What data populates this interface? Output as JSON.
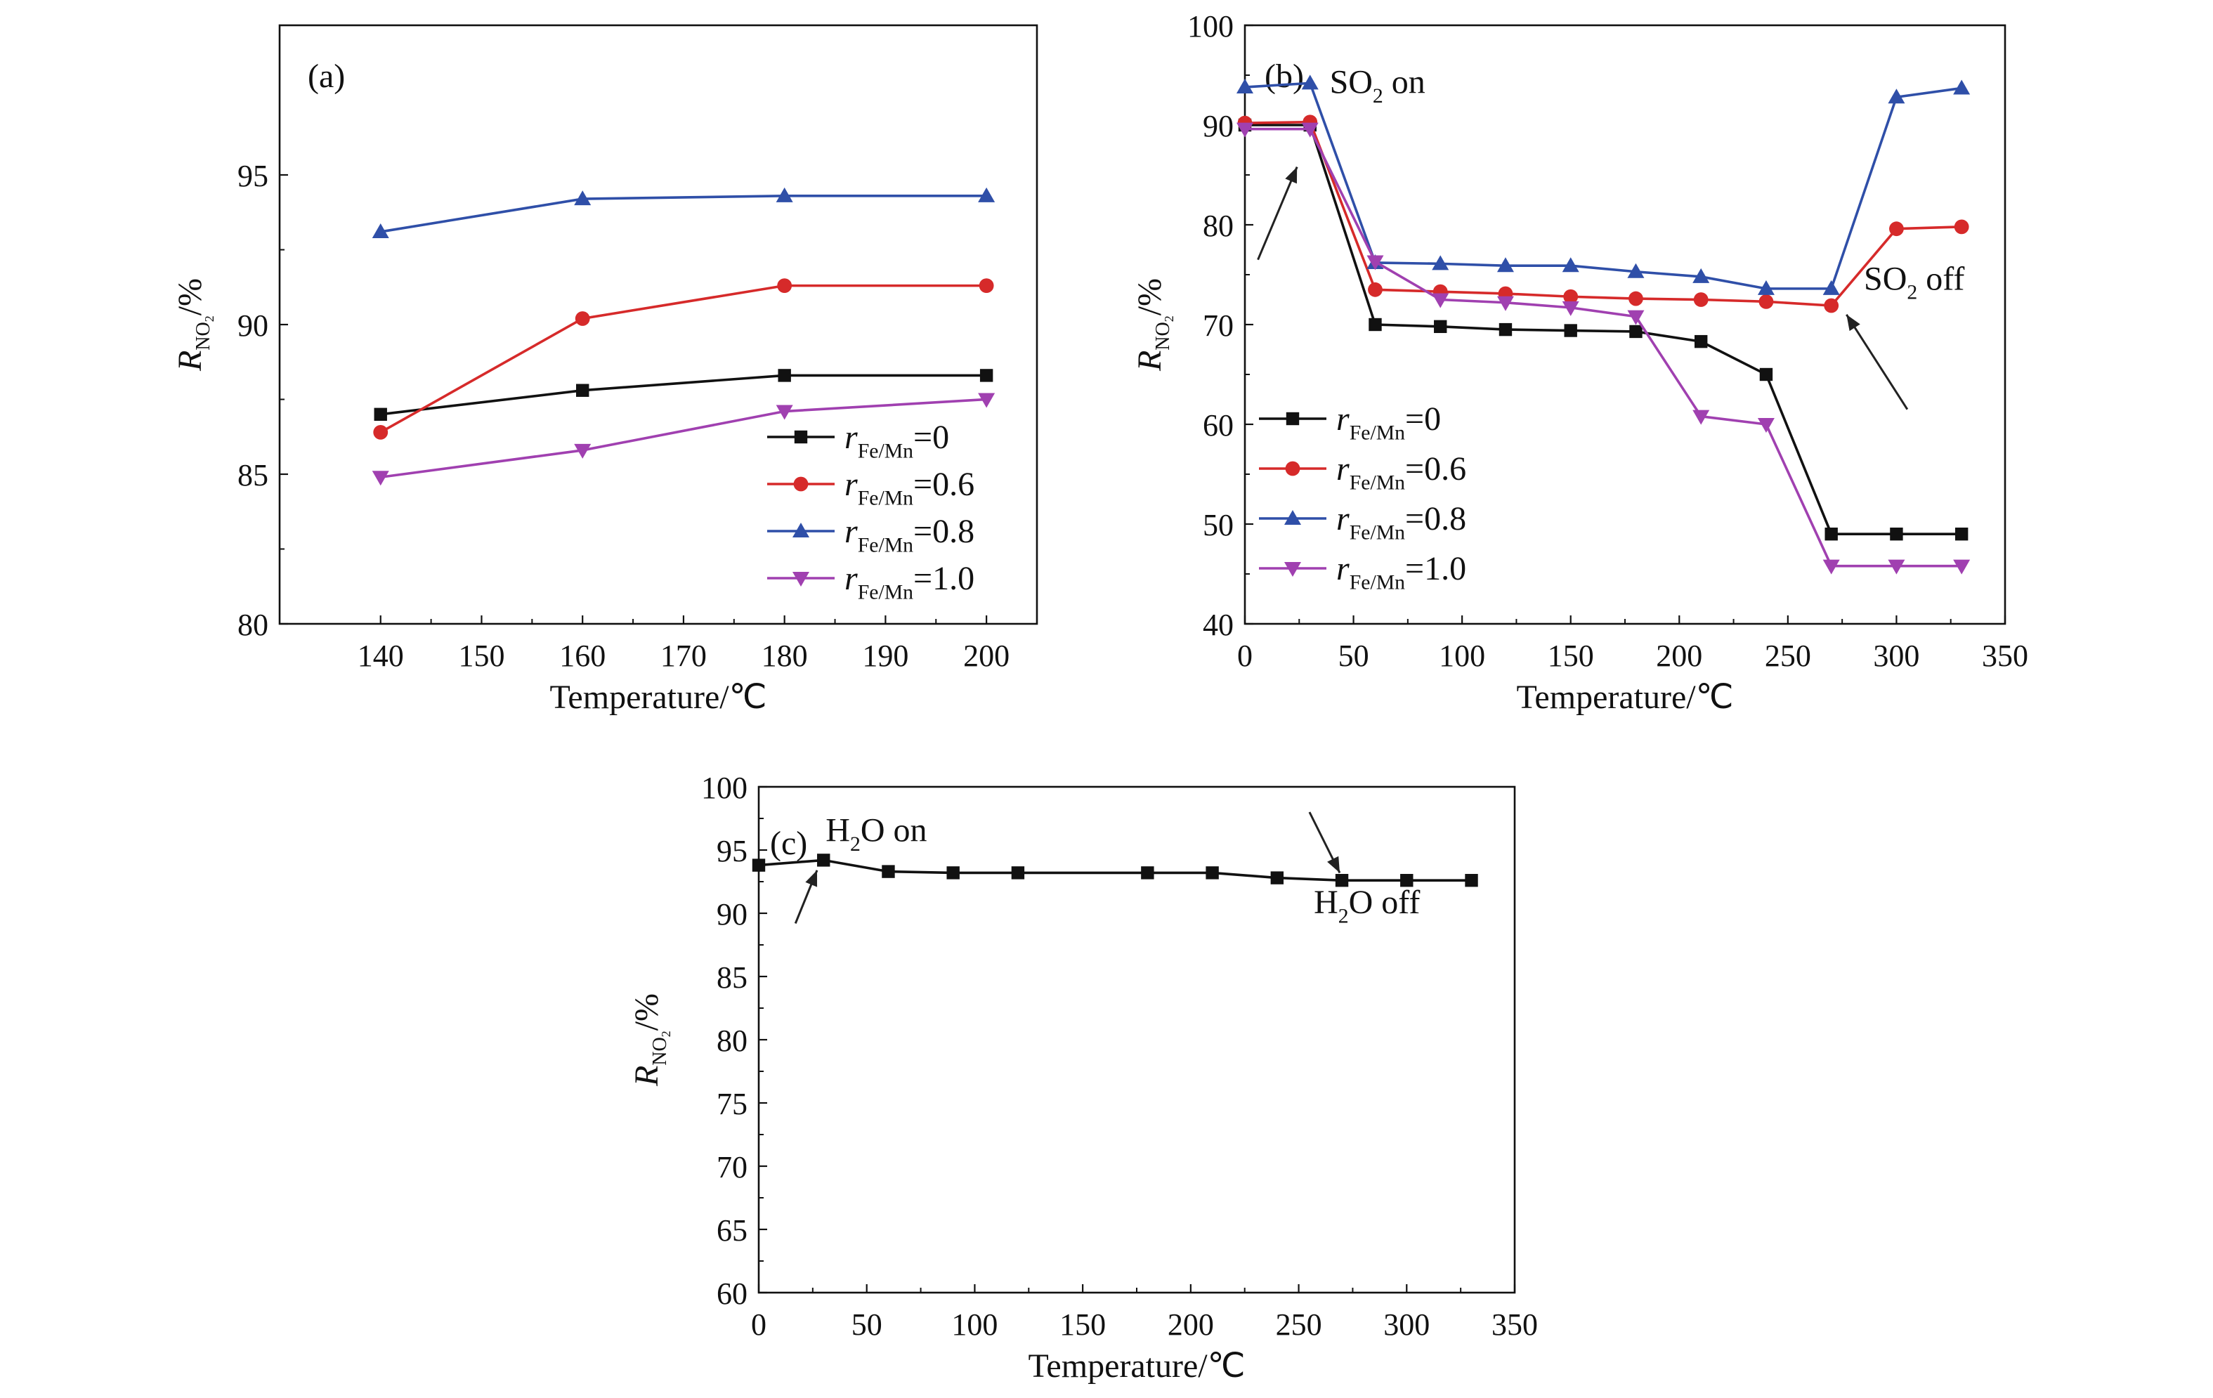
{
  "chart_data": [
    {
      "panel_label": "(a)",
      "type": "line",
      "xlabel": "Temperature/℃",
      "ylabel": {
        "main": "R",
        "sub": "NO",
        "subsub": "2",
        "unit": "/%"
      },
      "xlim": [
        130,
        205
      ],
      "ylim": [
        80,
        100
      ],
      "xticks": [
        140,
        150,
        160,
        170,
        180,
        190,
        200
      ],
      "yticks": [
        80,
        85,
        90,
        95
      ],
      "grid": false,
      "legend_position": "bottom-right",
      "series": [
        {
          "name": {
            "var": "r",
            "sub": "Fe/Mn",
            "rest": "=0"
          },
          "color": "#111111",
          "marker": "square",
          "x": [
            140,
            160,
            180,
            200
          ],
          "y": [
            87.0,
            87.8,
            88.3,
            88.3
          ]
        },
        {
          "name": {
            "var": "r",
            "sub": "Fe/Mn",
            "rest": "=0.6"
          },
          "color": "#d62a2a",
          "marker": "circle",
          "x": [
            140,
            160,
            180,
            200
          ],
          "y": [
            86.4,
            90.2,
            91.3,
            91.3
          ]
        },
        {
          "name": {
            "var": "r",
            "sub": "Fe/Mn",
            "rest": "=0.8"
          },
          "color": "#2f4fa8",
          "marker": "triangle-up",
          "x": [
            140,
            160,
            180,
            200
          ],
          "y": [
            93.1,
            94.2,
            94.3,
            94.3
          ]
        },
        {
          "name": {
            "var": "r",
            "sub": "Fe/Mn",
            "rest": "=1.0"
          },
          "color": "#a040b0",
          "marker": "triangle-down",
          "x": [
            140,
            160,
            180,
            200
          ],
          "y": [
            84.9,
            85.8,
            87.1,
            87.5
          ]
        }
      ],
      "annotations": []
    },
    {
      "panel_label": "(b)",
      "type": "line",
      "xlabel": "Temperature/℃",
      "ylabel": {
        "main": "R",
        "sub": "NO",
        "subsub": "2",
        "unit": "/%"
      },
      "xlim": [
        0,
        350
      ],
      "ylim": [
        40,
        100
      ],
      "xticks": [
        0,
        50,
        100,
        150,
        200,
        250,
        300,
        350
      ],
      "yticks": [
        40,
        50,
        60,
        70,
        80,
        90,
        100
      ],
      "grid": false,
      "legend_position": "bottom-left",
      "series": [
        {
          "name": {
            "var": "r",
            "sub": "Fe/Mn",
            "rest": "=0"
          },
          "color": "#111111",
          "marker": "square",
          "x": [
            0,
            30,
            60,
            90,
            120,
            150,
            180,
            210,
            240,
            270,
            300,
            330
          ],
          "y": [
            90.0,
            90.0,
            70.0,
            69.8,
            69.5,
            69.4,
            69.3,
            68.3,
            65.0,
            49.0,
            49.0,
            49.0
          ]
        },
        {
          "name": {
            "var": "r",
            "sub": "Fe/Mn",
            "rest": "=0.6"
          },
          "color": "#d62a2a",
          "marker": "circle",
          "x": [
            0,
            30,
            60,
            90,
            120,
            150,
            180,
            210,
            240,
            270,
            300,
            330
          ],
          "y": [
            90.2,
            90.3,
            73.5,
            73.3,
            73.1,
            72.8,
            72.6,
            72.5,
            72.3,
            71.9,
            79.6,
            79.8
          ]
        },
        {
          "name": {
            "var": "r",
            "sub": "Fe/Mn",
            "rest": "=0.8"
          },
          "color": "#2f4fa8",
          "marker": "triangle-up",
          "x": [
            0,
            30,
            60,
            90,
            120,
            150,
            180,
            210,
            240,
            270,
            300,
            330
          ],
          "y": [
            93.8,
            94.2,
            76.2,
            76.1,
            75.9,
            75.9,
            75.3,
            74.8,
            73.6,
            73.6,
            92.8,
            93.7
          ]
        },
        {
          "name": {
            "var": "r",
            "sub": "Fe/Mn",
            "rest": "=1.0"
          },
          "color": "#a040b0",
          "marker": "triangle-down",
          "x": [
            0,
            30,
            60,
            90,
            120,
            150,
            180,
            210,
            240,
            270,
            300,
            330
          ],
          "y": [
            89.6,
            89.6,
            76.3,
            72.5,
            72.2,
            71.7,
            70.8,
            60.8,
            60.0,
            45.8,
            45.8,
            45.8
          ]
        }
      ],
      "annotations": [
        {
          "text": "SO",
          "sub": "2",
          "rest": " on",
          "x": 39,
          "y": 93.2,
          "arrow": {
            "from": [
              6,
              76.5
            ],
            "to": [
              24,
              85.8
            ]
          }
        },
        {
          "text": "SO",
          "sub": "2",
          "rest": " off",
          "x": 285,
          "y": 73.5,
          "arrow": {
            "from": [
              305,
              61.5
            ],
            "to": [
              277,
              71.0
            ]
          }
        }
      ]
    },
    {
      "panel_label": "(c)",
      "type": "line",
      "xlabel": "Temperature/℃",
      "ylabel": {
        "main": "R",
        "sub": "NO",
        "subsub": "2",
        "unit": "/%"
      },
      "xlim": [
        0,
        350
      ],
      "ylim": [
        60,
        100
      ],
      "xticks": [
        0,
        50,
        100,
        150,
        200,
        250,
        300,
        350
      ],
      "yticks": [
        60,
        65,
        70,
        75,
        80,
        85,
        90,
        95,
        100
      ],
      "grid": false,
      "legend_position": "none",
      "series": [
        {
          "name": null,
          "color": "#111111",
          "marker": "square",
          "x": [
            0,
            30,
            60,
            90,
            120,
            180,
            210,
            240,
            270,
            300,
            330
          ],
          "y": [
            93.8,
            94.2,
            93.3,
            93.2,
            93.2,
            93.2,
            93.2,
            92.8,
            92.6,
            92.6,
            92.6
          ]
        }
      ],
      "annotations": [
        {
          "text": "H",
          "sub": "2",
          "rest": "O on",
          "x": 31,
          "y": 95.7,
          "arrow": {
            "from": [
              17,
              89.2
            ],
            "to": [
              27,
              93.4
            ]
          }
        },
        {
          "text": "H",
          "sub": "2",
          "rest": "O off",
          "x": 257,
          "y": 90.0,
          "arrow": {
            "from": [
              255,
              98.0
            ],
            "to": [
              269,
              93.2
            ]
          }
        }
      ]
    }
  ]
}
